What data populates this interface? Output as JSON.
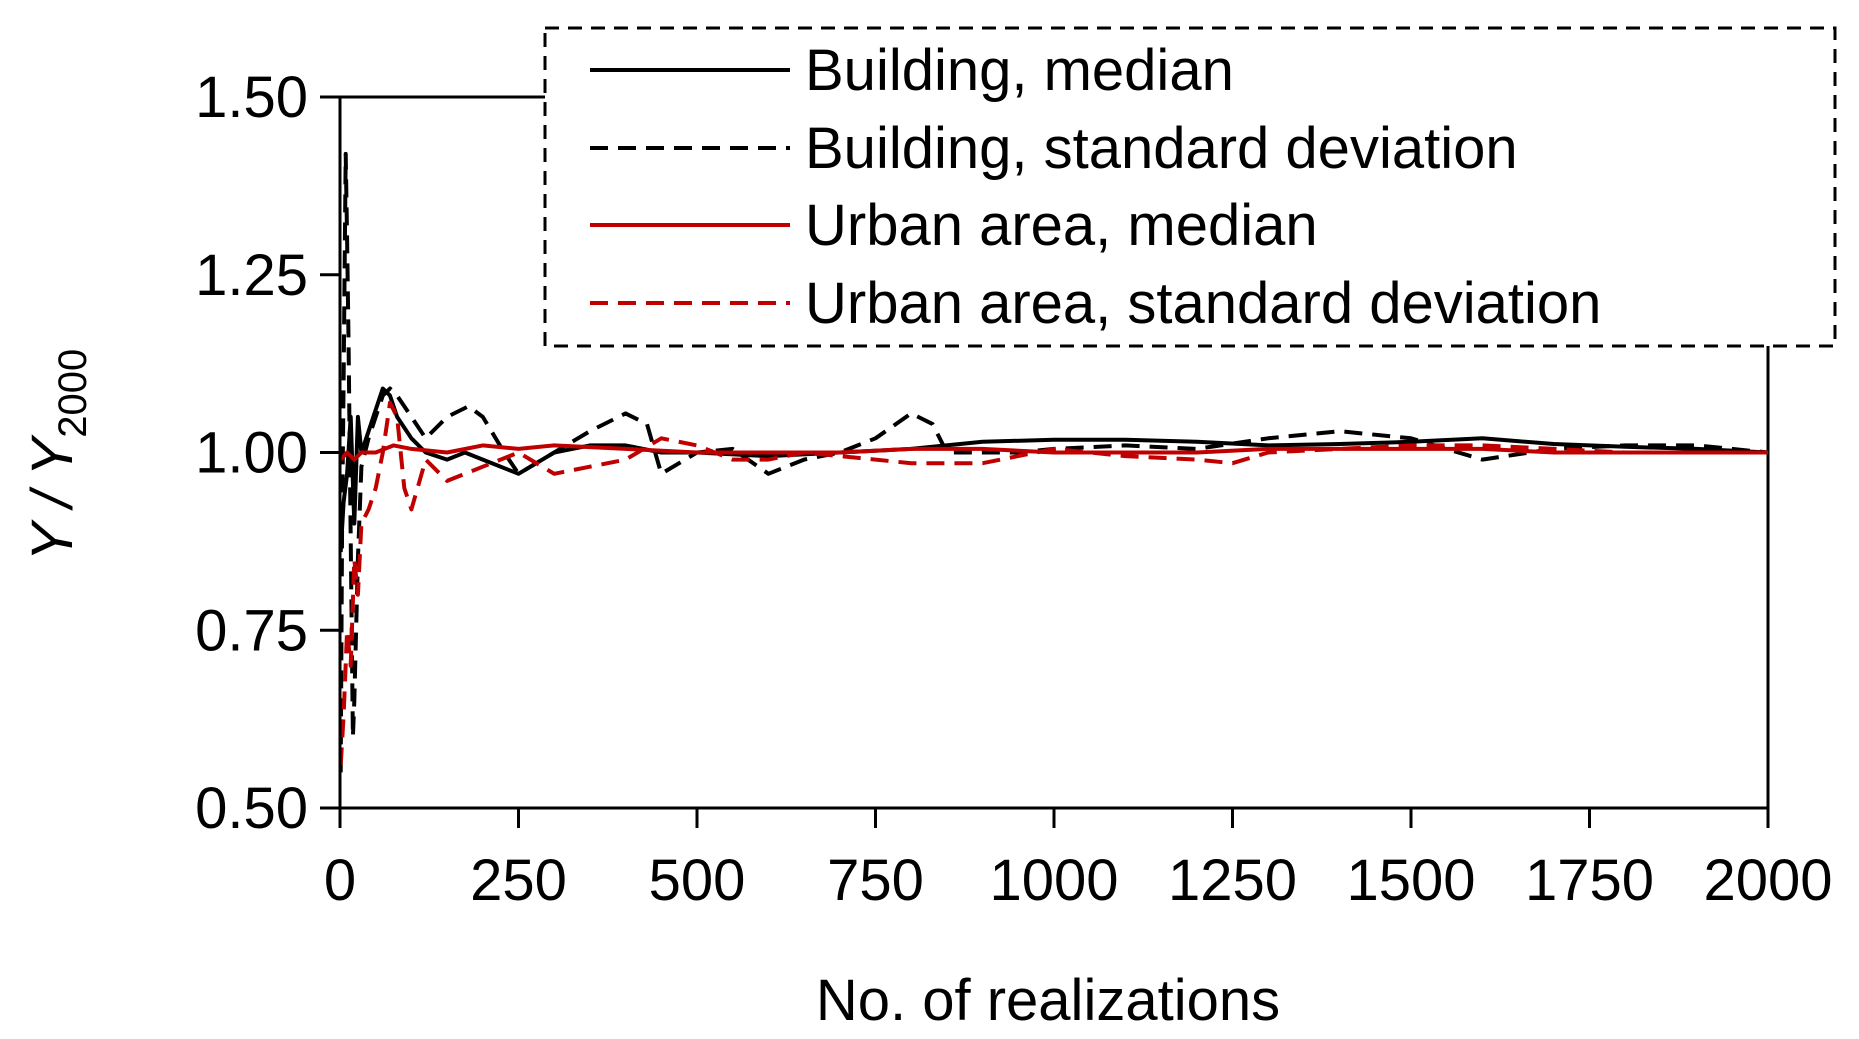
{
  "chart_data": {
    "type": "line",
    "xlabel": "No. of realizations",
    "ylabel_main": "Y / Y",
    "ylabel_sub": "2000",
    "xlim": [
      0,
      2000
    ],
    "ylim": [
      0.5,
      1.5
    ],
    "xticks": [
      0,
      250,
      500,
      750,
      1000,
      1250,
      1500,
      1750,
      2000
    ],
    "yticks": [
      0.5,
      0.75,
      1.0,
      1.25,
      1.5
    ],
    "xtick_labels": [
      "0",
      "250",
      "500",
      "750",
      "1000",
      "1250",
      "1500",
      "1750",
      "2000"
    ],
    "ytick_labels": [
      "0.50",
      "0.75",
      "1.00",
      "1.25",
      "1.50"
    ],
    "legend_position": "top-right",
    "series": [
      {
        "name": "Building, median",
        "color": "#000000",
        "dash": "solid",
        "points": [
          [
            1,
            0.86
          ],
          [
            5,
            0.93
          ],
          [
            10,
            0.97
          ],
          [
            15,
            1.05
          ],
          [
            20,
            0.9
          ],
          [
            25,
            1.05
          ],
          [
            30,
            1.0
          ],
          [
            40,
            1.03
          ],
          [
            50,
            1.06
          ],
          [
            60,
            1.09
          ],
          [
            70,
            1.08
          ],
          [
            80,
            1.05
          ],
          [
            100,
            1.02
          ],
          [
            120,
            1.0
          ],
          [
            150,
            0.99
          ],
          [
            175,
            1.0
          ],
          [
            200,
            0.99
          ],
          [
            250,
            0.97
          ],
          [
            300,
            1.0
          ],
          [
            350,
            1.01
          ],
          [
            400,
            1.01
          ],
          [
            450,
            1.0
          ],
          [
            500,
            1.0
          ],
          [
            600,
            0.995
          ],
          [
            700,
            1.0
          ],
          [
            800,
            1.005
          ],
          [
            900,
            1.015
          ],
          [
            1000,
            1.018
          ],
          [
            1100,
            1.018
          ],
          [
            1200,
            1.015
          ],
          [
            1300,
            1.01
          ],
          [
            1400,
            1.012
          ],
          [
            1500,
            1.015
          ],
          [
            1600,
            1.02
          ],
          [
            1700,
            1.012
          ],
          [
            1800,
            1.008
          ],
          [
            1900,
            1.005
          ],
          [
            2000,
            1.0
          ]
        ]
      },
      {
        "name": "Building, standard deviation",
        "color": "#000000",
        "dash": "dashed",
        "points": [
          [
            1,
            0.55
          ],
          [
            3,
            0.9
          ],
          [
            5,
            1.1
          ],
          [
            8,
            1.42
          ],
          [
            10,
            1.3
          ],
          [
            12,
            1.15
          ],
          [
            15,
            0.88
          ],
          [
            18,
            0.6
          ],
          [
            20,
            0.65
          ],
          [
            25,
            0.85
          ],
          [
            30,
            0.98
          ],
          [
            40,
            1.02
          ],
          [
            50,
            1.05
          ],
          [
            60,
            1.08
          ],
          [
            70,
            1.09
          ],
          [
            80,
            1.08
          ],
          [
            100,
            1.05
          ],
          [
            120,
            1.02
          ],
          [
            150,
            1.05
          ],
          [
            180,
            1.065
          ],
          [
            200,
            1.05
          ],
          [
            230,
            1.0
          ],
          [
            250,
            0.97
          ],
          [
            300,
            1.0
          ],
          [
            350,
            1.03
          ],
          [
            400,
            1.055
          ],
          [
            430,
            1.04
          ],
          [
            450,
            0.97
          ],
          [
            500,
            1.0
          ],
          [
            550,
            1.005
          ],
          [
            600,
            0.97
          ],
          [
            650,
            0.99
          ],
          [
            700,
            1.0
          ],
          [
            750,
            1.02
          ],
          [
            800,
            1.055
          ],
          [
            830,
            1.04
          ],
          [
            850,
            1.0
          ],
          [
            900,
            1.0
          ],
          [
            950,
            1.0
          ],
          [
            1000,
            1.005
          ],
          [
            1100,
            1.01
          ],
          [
            1200,
            1.005
          ],
          [
            1300,
            1.02
          ],
          [
            1400,
            1.03
          ],
          [
            1500,
            1.02
          ],
          [
            1600,
            0.99
          ],
          [
            1700,
            1.005
          ],
          [
            1800,
            1.01
          ],
          [
            1900,
            1.01
          ],
          [
            2000,
            1.0
          ]
        ]
      },
      {
        "name": "Urban area, median",
        "color": "#c00000",
        "dash": "solid",
        "points": [
          [
            1,
            0.99
          ],
          [
            10,
            1.0
          ],
          [
            20,
            0.99
          ],
          [
            30,
            1.0
          ],
          [
            50,
            1.0
          ],
          [
            75,
            1.01
          ],
          [
            100,
            1.005
          ],
          [
            150,
            1.0
          ],
          [
            200,
            1.01
          ],
          [
            250,
            1.005
          ],
          [
            300,
            1.01
          ],
          [
            400,
            1.005
          ],
          [
            500,
            1.0
          ],
          [
            600,
            1.0
          ],
          [
            700,
            1.0
          ],
          [
            800,
            1.005
          ],
          [
            900,
            1.005
          ],
          [
            1000,
            1.0
          ],
          [
            1100,
            1.0
          ],
          [
            1200,
            1.0
          ],
          [
            1300,
            1.005
          ],
          [
            1400,
            1.005
          ],
          [
            1500,
            1.005
          ],
          [
            1600,
            1.005
          ],
          [
            1700,
            1.0
          ],
          [
            1800,
            1.0
          ],
          [
            1900,
            1.0
          ],
          [
            2000,
            1.0
          ]
        ]
      },
      {
        "name": "Urban area, standard deviation",
        "color": "#c00000",
        "dash": "dashed",
        "points": [
          [
            1,
            0.56
          ],
          [
            5,
            0.63
          ],
          [
            10,
            0.75
          ],
          [
            15,
            0.7
          ],
          [
            20,
            0.85
          ],
          [
            25,
            0.8
          ],
          [
            30,
            0.9
          ],
          [
            40,
            0.92
          ],
          [
            50,
            0.95
          ],
          [
            60,
            1.0
          ],
          [
            70,
            1.07
          ],
          [
            80,
            1.05
          ],
          [
            90,
            0.95
          ],
          [
            100,
            0.92
          ],
          [
            120,
            0.99
          ],
          [
            150,
            0.96
          ],
          [
            200,
            0.98
          ],
          [
            250,
            1.0
          ],
          [
            300,
            0.97
          ],
          [
            350,
            0.98
          ],
          [
            400,
            0.99
          ],
          [
            450,
            1.02
          ],
          [
            500,
            1.01
          ],
          [
            550,
            0.99
          ],
          [
            600,
            0.99
          ],
          [
            650,
            1.0
          ],
          [
            700,
            0.995
          ],
          [
            800,
            0.985
          ],
          [
            900,
            0.985
          ],
          [
            1000,
            1.005
          ],
          [
            1100,
            0.995
          ],
          [
            1200,
            0.99
          ],
          [
            1250,
            0.985
          ],
          [
            1300,
            1.0
          ],
          [
            1400,
            1.005
          ],
          [
            1500,
            1.01
          ],
          [
            1600,
            1.01
          ],
          [
            1700,
            1.005
          ],
          [
            1800,
            1.0
          ],
          [
            1900,
            1.0
          ],
          [
            2000,
            1.0
          ]
        ]
      }
    ]
  }
}
